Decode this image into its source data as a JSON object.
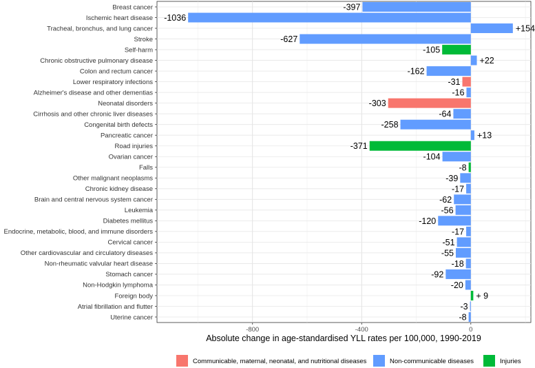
{
  "chart_data": {
    "type": "bar",
    "orientation": "horizontal",
    "xlabel": "Absolute change in age-standardised YLL rates per 100,000, 1990-2019",
    "xlim": [
      -1150,
      220
    ],
    "x_ticks": [
      -800,
      -400,
      0
    ],
    "x_tick_labels": [
      "-800",
      "-400",
      "0"
    ],
    "grid": true,
    "legend_position": "bottom",
    "groups": [
      {
        "name": "Communicable, maternal, neonatal, and nutritional diseases",
        "color": "#F8766D"
      },
      {
        "name": "Non-communicable diseases",
        "color": "#619CFF"
      },
      {
        "name": "Injuries",
        "color": "#00BA38"
      }
    ],
    "categories": [
      "Breast cancer",
      "Ischemic heart disease",
      "Tracheal, bronchus, and lung cancer",
      "Stroke",
      "Self-harm",
      "Chronic obstructive pulmonary disease",
      "Colon and rectum cancer",
      "Lower respiratory infections",
      "Alzheimer's disease and other dementias",
      "Neonatal disorders",
      "Cirrhosis and other chronic liver diseases",
      "Congenital birth defects",
      "Pancreatic cancer",
      "Road injuries",
      "Ovarian cancer",
      "Falls",
      "Other malignant neoplasms",
      "Chronic kidney disease",
      "Brain and central nervous system cancer",
      "Leukemia",
      "Diabetes mellitus",
      "Endocrine, metabolic, blood, and immune disorders",
      "Cervical cancer",
      "Other cardiovascular and circulatory diseases",
      "Non-rheumatic valvular heart disease",
      "Stomach cancer",
      "Non-Hodgkin lymphoma",
      "Foreign body",
      "Atrial fibrillation and flutter",
      "Uterine cancer"
    ],
    "values": [
      -397,
      -1036,
      154,
      -627,
      -105,
      22,
      -162,
      -31,
      -16,
      -303,
      -64,
      -258,
      13,
      -371,
      -104,
      -8,
      -39,
      -17,
      -62,
      -56,
      -120,
      -17,
      -51,
      -55,
      -18,
      -92,
      -20,
      9,
      -3,
      -8
    ],
    "value_labels": [
      "-397",
      "-1036",
      "+154",
      "-627",
      "-105",
      "+22",
      "-162",
      "-31",
      "-16",
      "-303",
      "-64",
      "-258",
      "+13",
      "-371",
      "-104",
      "-8",
      "-39",
      "-17",
      "-62",
      "-56",
      "-120",
      "-17",
      "-51",
      "-55",
      "-18",
      "-92",
      "-20",
      "+ 9",
      "-3",
      "-8"
    ],
    "group_index": [
      1,
      1,
      1,
      1,
      2,
      1,
      1,
      0,
      1,
      0,
      1,
      1,
      1,
      2,
      1,
      2,
      1,
      1,
      1,
      1,
      1,
      1,
      1,
      1,
      1,
      1,
      1,
      2,
      1,
      1
    ]
  }
}
